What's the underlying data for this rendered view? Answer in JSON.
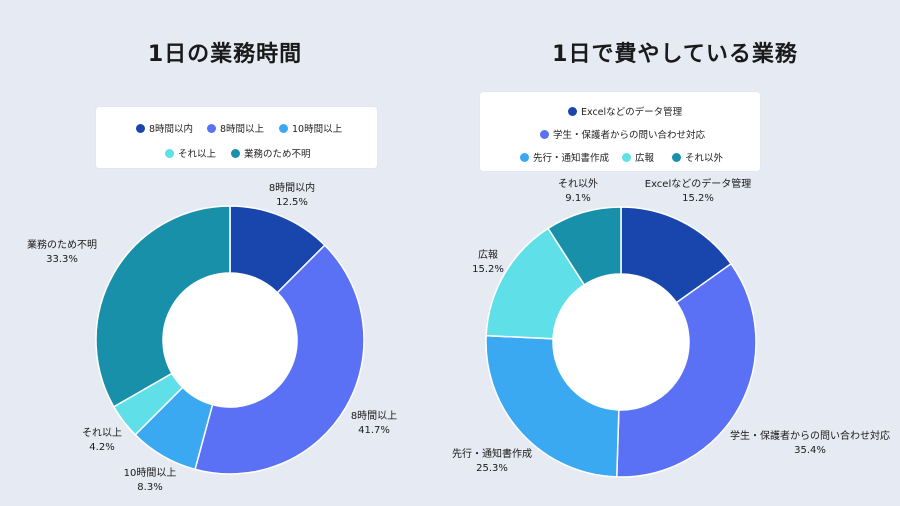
{
  "chart_data": [
    {
      "type": "pie",
      "title": "1日の業務時間",
      "categories": [
        "8時間以内",
        "8時間以上",
        "10時間以上",
        "それ以上",
        "業務のため不明"
      ],
      "values": [
        12.5,
        41.7,
        8.3,
        4.2,
        33.3
      ],
      "value_labels": [
        "12.5%",
        "41.7%",
        "8.3%",
        "4.2%",
        "33.3%"
      ],
      "colors": [
        "#1846ad",
        "#5b71f5",
        "#3aa9f2",
        "#5fdfe8",
        "#1990a9"
      ],
      "legend": "top"
    },
    {
      "type": "pie",
      "title": "1日で費やしている業務",
      "categories": [
        "Excelなどのデータ管理",
        "学生・保護者からの問い合わせ対応",
        "先行・通知書作成",
        "広報",
        "それ以外"
      ],
      "values": [
        15.2,
        35.4,
        25.3,
        15.2,
        9.1
      ],
      "value_labels": [
        "15.2%",
        "35.4%",
        "25.3%",
        "15.2%",
        "9.1%"
      ],
      "colors": [
        "#1846ad",
        "#5b71f5",
        "#3aa9f2",
        "#5fdfe8",
        "#1990a9"
      ],
      "legend": "top"
    }
  ]
}
